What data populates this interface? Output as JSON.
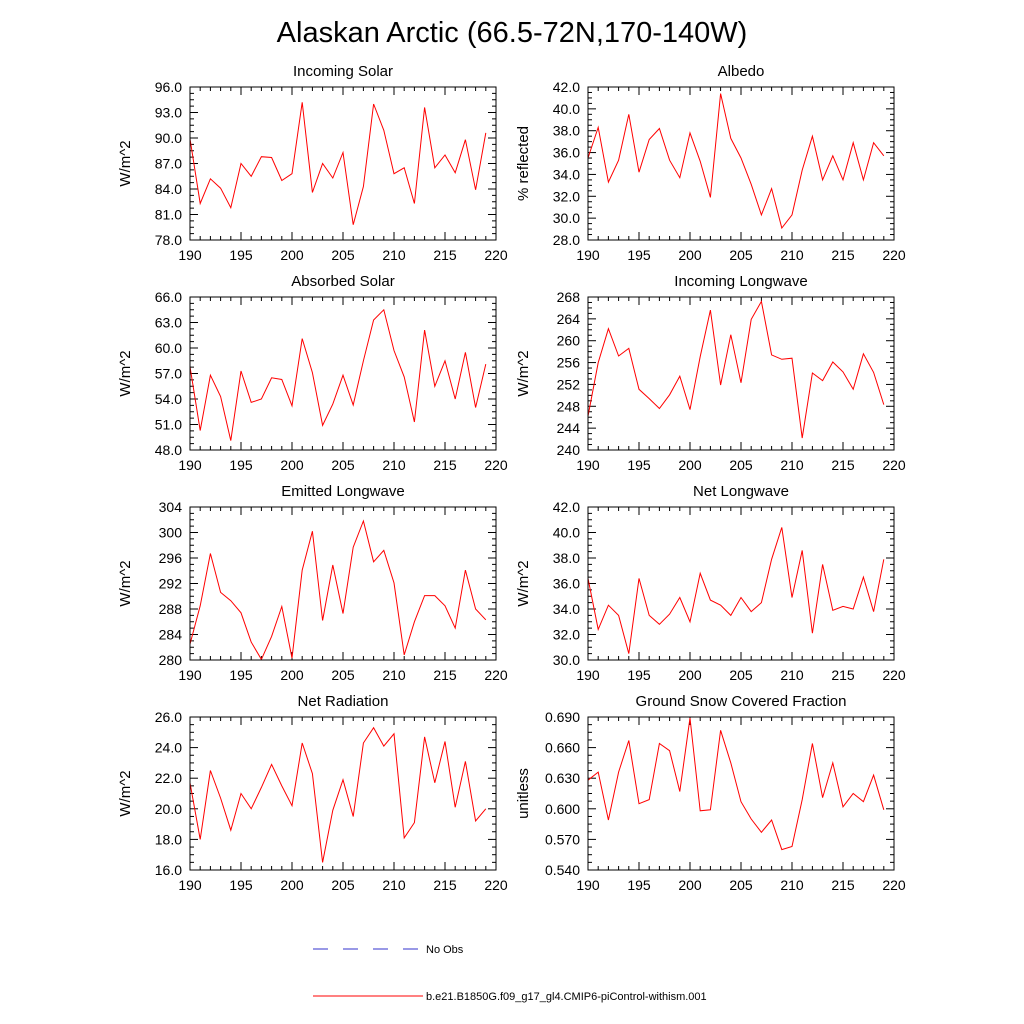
{
  "figure": {
    "title": "Alaskan Arctic (66.5-72N,170-140W)",
    "legend": {
      "no_obs_label": "No Obs",
      "model_label": "b.e21.B1850G.f09_g17_gl4.CMIP6-piControl-withism.001",
      "no_obs_color": "#3333cc",
      "model_color": "#ff0000"
    }
  },
  "chart_data": [
    {
      "type": "line",
      "title": "Incoming Solar",
      "ylabel": "W/m^2",
      "xlim": [
        190,
        220
      ],
      "ylim": [
        78.0,
        96.0
      ],
      "xticks": [
        "190",
        "195",
        "200",
        "205",
        "210",
        "215",
        "220"
      ],
      "yticks": [
        "78.0",
        "81.0",
        "84.0",
        "87.0",
        "90.0",
        "93.0",
        "96.0"
      ],
      "x": [
        190,
        191,
        192,
        193,
        194,
        195,
        196,
        197,
        198,
        199,
        200,
        201,
        202,
        203,
        204,
        205,
        206,
        207,
        208,
        209,
        210,
        211,
        212,
        213,
        214,
        215,
        216,
        217,
        218,
        219
      ],
      "series": [
        {
          "values": [
            89.9,
            82.3,
            85.2,
            84.1,
            81.8,
            87.0,
            85.5,
            87.8,
            87.7,
            85.0,
            85.8,
            94.2,
            83.6,
            87.0,
            85.3,
            88.3,
            79.8,
            84.3,
            94.0,
            90.9,
            85.8,
            86.5,
            82.3,
            93.6,
            86.5,
            88.0,
            85.9,
            89.8,
            83.9,
            90.6
          ]
        }
      ]
    },
    {
      "type": "line",
      "title": "Albedo",
      "ylabel": "% reflected",
      "xlim": [
        190,
        220
      ],
      "ylim": [
        28.0,
        42.0
      ],
      "xticks": [
        "190",
        "195",
        "200",
        "205",
        "210",
        "215",
        "220"
      ],
      "yticks": [
        "28.0",
        "30.0",
        "32.0",
        "34.0",
        "36.0",
        "38.0",
        "40.0",
        "42.0"
      ],
      "x": [
        190,
        191,
        192,
        193,
        194,
        195,
        196,
        197,
        198,
        199,
        200,
        201,
        202,
        203,
        204,
        205,
        206,
        207,
        208,
        209,
        210,
        211,
        212,
        213,
        214,
        215,
        216,
        217,
        218,
        219
      ],
      "series": [
        {
          "values": [
            35.5,
            38.3,
            33.3,
            35.3,
            39.5,
            34.2,
            37.2,
            38.2,
            35.3,
            33.7,
            37.8,
            35.2,
            31.9,
            41.4,
            37.3,
            35.5,
            33.1,
            30.3,
            32.7,
            29.1,
            30.3,
            34.4,
            37.5,
            33.5,
            35.7,
            33.5,
            36.9,
            33.5,
            36.9,
            35.7
          ]
        }
      ]
    },
    {
      "type": "line",
      "title": "Absorbed Solar",
      "ylabel": "W/m^2",
      "xlim": [
        190,
        220
      ],
      "ylim": [
        48.0,
        66.0
      ],
      "xticks": [
        "190",
        "195",
        "200",
        "205",
        "210",
        "215",
        "220"
      ],
      "yticks": [
        "48.0",
        "51.0",
        "54.0",
        "57.0",
        "60.0",
        "63.0",
        "66.0"
      ],
      "x": [
        190,
        191,
        192,
        193,
        194,
        195,
        196,
        197,
        198,
        199,
        200,
        201,
        202,
        203,
        204,
        205,
        206,
        207,
        208,
        209,
        210,
        211,
        212,
        213,
        214,
        215,
        216,
        217,
        218,
        219
      ],
      "series": [
        {
          "values": [
            57.8,
            50.3,
            56.8,
            54.3,
            49.1,
            57.3,
            53.6,
            54.0,
            56.5,
            56.3,
            53.2,
            61.1,
            57.1,
            50.9,
            53.4,
            56.8,
            53.3,
            58.5,
            63.3,
            64.5,
            59.7,
            56.6,
            51.3,
            62.1,
            55.5,
            58.5,
            54.0,
            59.5,
            53.0,
            58.1
          ]
        }
      ]
    },
    {
      "type": "line",
      "title": "Incoming Longwave",
      "ylabel": "W/m^2",
      "xlim": [
        190,
        220
      ],
      "ylim": [
        240,
        268
      ],
      "xticks": [
        "190",
        "195",
        "200",
        "205",
        "210",
        "215",
        "220"
      ],
      "yticks": [
        "240",
        "244",
        "248",
        "252",
        "256",
        "260",
        "264",
        "268"
      ],
      "x": [
        190,
        191,
        192,
        193,
        194,
        195,
        196,
        197,
        198,
        199,
        200,
        201,
        202,
        203,
        204,
        205,
        206,
        207,
        208,
        209,
        210,
        211,
        212,
        213,
        214,
        215,
        216,
        217,
        218,
        219
      ],
      "series": [
        {
          "values": [
            246.2,
            256.0,
            262.2,
            257.2,
            258.6,
            251.1,
            249.4,
            247.6,
            250.1,
            253.5,
            247.4,
            257.1,
            265.6,
            251.9,
            261.1,
            252.3,
            263.9,
            267.2,
            257.4,
            256.6,
            256.8,
            242.2,
            254.1,
            252.7,
            256.1,
            254.3,
            251.1,
            257.6,
            254.2,
            248.3
          ]
        }
      ]
    },
    {
      "type": "line",
      "title": "Emitted Longwave",
      "ylabel": "W/m^2",
      "xlim": [
        190,
        220
      ],
      "ylim": [
        280,
        304
      ],
      "xticks": [
        "190",
        "195",
        "200",
        "205",
        "210",
        "215",
        "220"
      ],
      "yticks": [
        "280",
        "284",
        "288",
        "292",
        "296",
        "300",
        "304"
      ],
      "x": [
        190,
        191,
        192,
        193,
        194,
        195,
        196,
        197,
        198,
        199,
        200,
        201,
        202,
        203,
        204,
        205,
        206,
        207,
        208,
        209,
        210,
        211,
        212,
        213,
        214,
        215,
        216,
        217,
        218,
        219
      ],
      "series": [
        {
          "values": [
            282.5,
            288.5,
            296.7,
            290.6,
            289.3,
            287.4,
            282.8,
            280.1,
            283.7,
            288.4,
            280.3,
            294.1,
            300.2,
            286.2,
            294.9,
            287.3,
            297.7,
            301.8,
            295.4,
            297.2,
            292.1,
            280.8,
            286.0,
            290.1,
            290.1,
            288.5,
            285.0,
            294.1,
            288.0,
            286.3
          ]
        }
      ]
    },
    {
      "type": "line",
      "title": "Net Longwave",
      "ylabel": "W/m^2",
      "xlim": [
        190,
        220
      ],
      "ylim": [
        30.0,
        42.0
      ],
      "xticks": [
        "190",
        "195",
        "200",
        "205",
        "210",
        "215",
        "220"
      ],
      "yticks": [
        "30.0",
        "32.0",
        "34.0",
        "36.0",
        "38.0",
        "40.0",
        "42.0"
      ],
      "x": [
        190,
        191,
        192,
        193,
        194,
        195,
        196,
        197,
        198,
        199,
        200,
        201,
        202,
        203,
        204,
        205,
        206,
        207,
        208,
        209,
        210,
        211,
        212,
        213,
        214,
        215,
        216,
        217,
        218,
        219
      ],
      "series": [
        {
          "values": [
            36.4,
            32.4,
            34.3,
            33.5,
            30.5,
            36.4,
            33.5,
            32.8,
            33.6,
            34.9,
            33.0,
            36.8,
            34.7,
            34.3,
            33.5,
            34.9,
            33.8,
            34.5,
            37.9,
            40.4,
            34.9,
            38.6,
            32.1,
            37.5,
            33.9,
            34.2,
            34.0,
            36.5,
            33.8,
            37.9
          ]
        }
      ]
    },
    {
      "type": "line",
      "title": "Net Radiation",
      "ylabel": "W/m^2",
      "xlim": [
        190,
        220
      ],
      "ylim": [
        16.0,
        26.0
      ],
      "xticks": [
        "190",
        "195",
        "200",
        "205",
        "210",
        "215",
        "220"
      ],
      "yticks": [
        "16.0",
        "18.0",
        "20.0",
        "22.0",
        "24.0",
        "26.0"
      ],
      "x": [
        190,
        191,
        192,
        193,
        194,
        195,
        196,
        197,
        198,
        199,
        200,
        201,
        202,
        203,
        204,
        205,
        206,
        207,
        208,
        209,
        210,
        211,
        212,
        213,
        214,
        215,
        216,
        217,
        218,
        219
      ],
      "series": [
        {
          "values": [
            21.7,
            18.0,
            22.5,
            20.7,
            18.6,
            21.0,
            20.0,
            21.4,
            22.9,
            21.5,
            20.2,
            24.3,
            22.3,
            16.5,
            19.9,
            21.9,
            19.5,
            24.3,
            25.3,
            24.1,
            24.9,
            18.1,
            19.1,
            24.7,
            21.7,
            24.4,
            20.1,
            23.1,
            19.2,
            20.0
          ]
        }
      ]
    },
    {
      "type": "line",
      "title": "Ground Snow Covered Fraction",
      "ylabel": "unitless",
      "xlim": [
        190,
        220
      ],
      "ylim": [
        0.54,
        0.69
      ],
      "xticks": [
        "190",
        "195",
        "200",
        "205",
        "210",
        "215",
        "220"
      ],
      "yticks": [
        "0.540",
        "0.570",
        "0.600",
        "0.630",
        "0.660",
        "0.690"
      ],
      "x": [
        190,
        191,
        192,
        193,
        194,
        195,
        196,
        197,
        198,
        199,
        200,
        201,
        202,
        203,
        204,
        205,
        206,
        207,
        208,
        209,
        210,
        211,
        212,
        213,
        214,
        215,
        216,
        217,
        218,
        219
      ],
      "series": [
        {
          "values": [
            0.628,
            0.636,
            0.589,
            0.636,
            0.667,
            0.605,
            0.609,
            0.664,
            0.657,
            0.617,
            0.689,
            0.598,
            0.599,
            0.677,
            0.645,
            0.607,
            0.59,
            0.577,
            0.589,
            0.56,
            0.563,
            0.609,
            0.664,
            0.611,
            0.645,
            0.602,
            0.615,
            0.607,
            0.633,
            0.599
          ]
        }
      ]
    }
  ]
}
